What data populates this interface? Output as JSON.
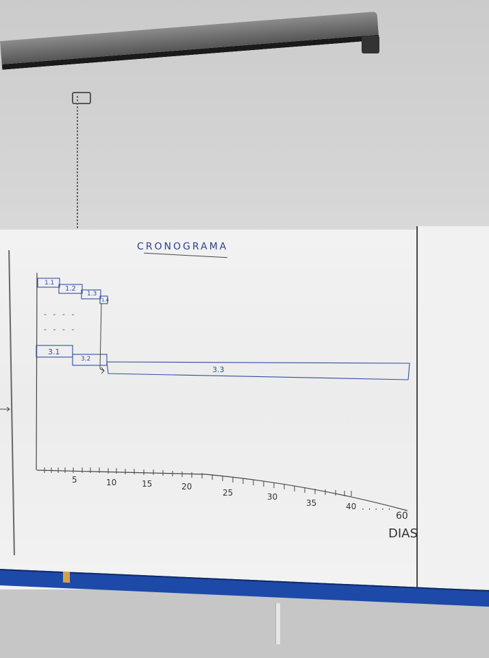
{
  "board": {
    "title": "CRONOGRAMA",
    "units_label": "DIAS",
    "continuation_dots": "- - - -",
    "axis_gap_dots": "· · · · ·"
  },
  "tasks": [
    {
      "label": "1.1"
    },
    {
      "label": "1.2"
    },
    {
      "label": "1.3"
    },
    {
      "label": "1.4"
    },
    {
      "label": "3.1"
    },
    {
      "label": "3.2"
    },
    {
      "label": "3.3"
    }
  ],
  "axis": {
    "ticks": [
      "5",
      "10",
      "15",
      "20",
      "25",
      "30",
      "35",
      "40",
      "60"
    ]
  },
  "colors": {
    "marker_blue": "#2f4ea0",
    "marker_black": "#333333",
    "tray_blue": "#1d4aa8"
  }
}
